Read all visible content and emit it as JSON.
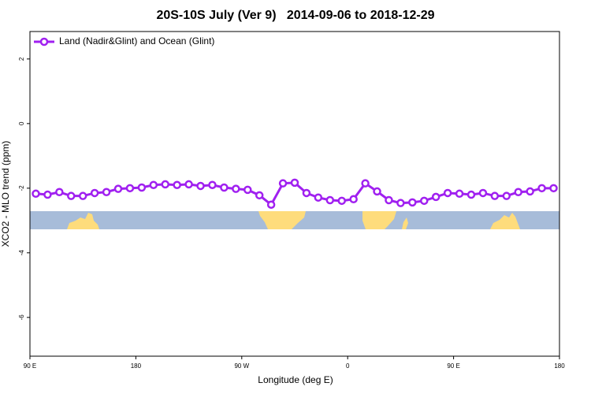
{
  "chart_data": {
    "type": "line",
    "title": "20S-10S July (Ver 9)   2014-09-06 to 2018-12-29",
    "x_label": "Longitude (deg E)",
    "y_label": "XCO2 - MLO trend (ppm)",
    "x": [
      95,
      105,
      115,
      125,
      135,
      145,
      155,
      165,
      175,
      185,
      195,
      205,
      215,
      225,
      235,
      245,
      255,
      265,
      275,
      285,
      295,
      305,
      315,
      325,
      335,
      345,
      355,
      365,
      375,
      385,
      395,
      405,
      415,
      425,
      435,
      445,
      455,
      465,
      475,
      485,
      495,
      505,
      515,
      525,
      535
    ],
    "series": [
      {
        "name": "Land (Nadir&Glint) and Ocean (Glint)",
        "color": "#a020f0",
        "values": [
          -2.17,
          -2.2,
          -2.12,
          -2.24,
          -2.24,
          -2.15,
          -2.12,
          -2.02,
          -2.0,
          -1.98,
          -1.9,
          -1.88,
          -1.9,
          -1.88,
          -1.93,
          -1.9,
          -1.98,
          -2.02,
          -2.05,
          -2.22,
          -2.51,
          -1.85,
          -1.83,
          -2.15,
          -2.29,
          -2.37,
          -2.39,
          -2.34,
          -1.85,
          -2.1,
          -2.37,
          -2.46,
          -2.44,
          -2.39,
          -2.27,
          -2.15,
          -2.17,
          -2.2,
          -2.15,
          -2.24,
          -2.24,
          -2.12,
          -2.1,
          -2.0,
          -2.0
        ]
      }
    ],
    "xlim": [
      90,
      540
    ],
    "ylim": [
      -7.2,
      2.85
    ],
    "xticks": [
      {
        "value": 90,
        "label": "90 E"
      },
      180,
      {
        "value": 270,
        "label": "90 W"
      },
      {
        "value": 360,
        "label": "0"
      },
      {
        "value": 450,
        "label": "90 E"
      },
      {
        "value": 540,
        "label": "180"
      }
    ],
    "yticks": [
      -6,
      -4,
      -2,
      0,
      2
    ],
    "legend": "top-left"
  }
}
